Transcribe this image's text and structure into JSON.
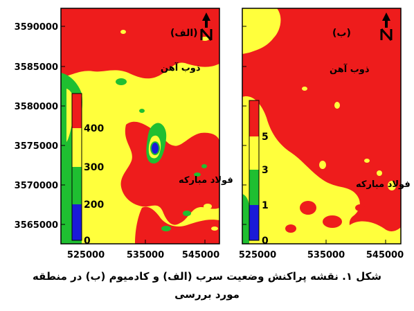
{
  "colors": {
    "red": "#ee1c1c",
    "yellow": "#ffff3c",
    "green": "#1fbf31",
    "blue": "#1a1ad8"
  },
  "map_a": {
    "label": "(الف)",
    "y_ticks": [
      "3590000",
      "3585000",
      "3580000",
      "3575000",
      "3570000",
      "3565000"
    ],
    "x_ticks": [
      "525000",
      "535000",
      "545000"
    ],
    "places": [
      "ذوب آهن",
      "فولاد مبارکه"
    ],
    "legend_ticks": [
      "400",
      "300",
      "200",
      "0"
    ],
    "north_icon": "north-arrow-icon"
  },
  "map_b": {
    "label": "(ب)",
    "x_ticks": [
      "525000",
      "535000",
      "545000"
    ],
    "places": [
      "ذوب آهن",
      "فولاد مبارکه"
    ],
    "legend_ticks": [
      "5",
      "3",
      "1",
      "0"
    ],
    "north_icon": "north-arrow-icon"
  },
  "caption": {
    "line1": "شکل ۱. نقشه پراکنش وضعیت سرب (الف) و کادمیوم (ب) در منطقه",
    "line2": "مورد بررسی"
  }
}
